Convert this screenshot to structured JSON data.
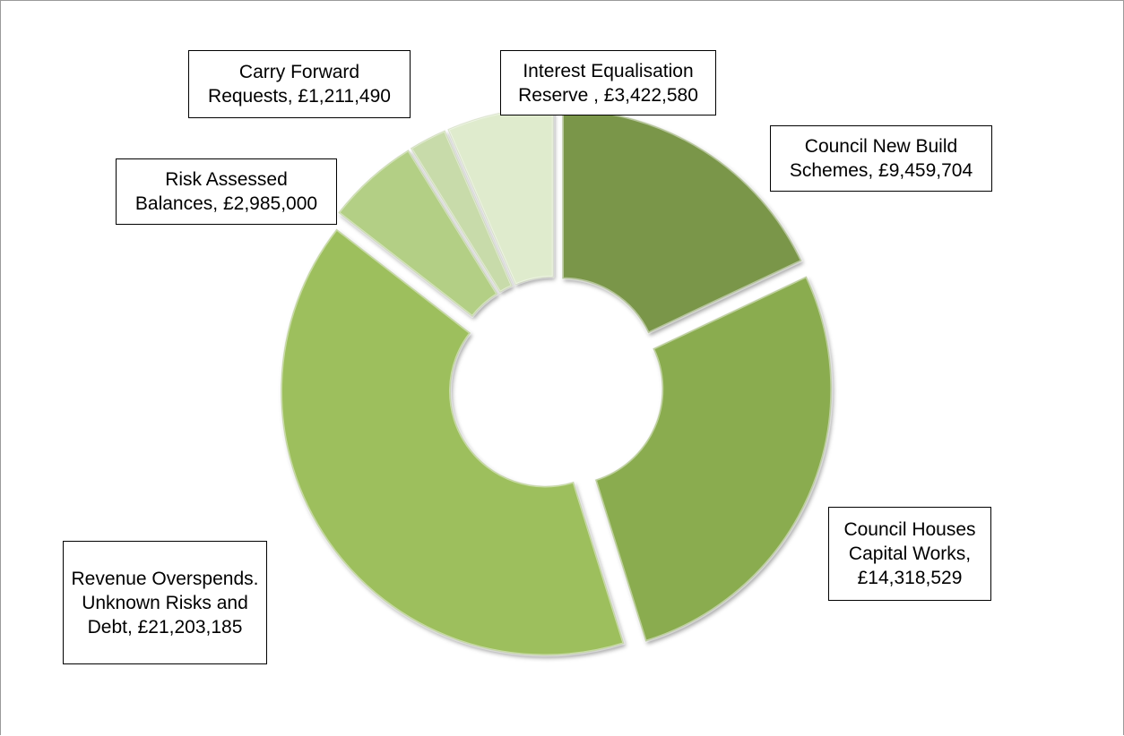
{
  "chart_data": {
    "type": "pie",
    "donut": true,
    "title": "",
    "legend": "none",
    "slices": [
      {
        "name": "Council New Build Schemes",
        "value": 9459704,
        "label": "Council New Build Schemes, £9,459,704",
        "color": "#7a9648"
      },
      {
        "name": "Council Houses Capital Works",
        "value": 14318529,
        "label": "Council Houses Capital Works, £14,318,529",
        "color": "#8aac50"
      },
      {
        "name": "Revenue Overspends. Unknown Risks and Debt",
        "value": 21203185,
        "label": "Revenue Overspends. Unknown Risks and Debt, £21,203,185",
        "color": "#9dbf5d"
      },
      {
        "name": "Risk Assessed Balances",
        "value": 2985000,
        "label": "Risk Assessed Balances, £2,985,000",
        "color": "#b3cf85"
      },
      {
        "name": "Carry Forward Requests",
        "value": 1211490,
        "label": "Carry Forward Requests, £1,211,490",
        "color": "#c8dbaa"
      },
      {
        "name": "Interest Equalisation Reserve",
        "value": 3422580,
        "label": "Interest Equalisation Reserve , £3,422,580",
        "color": "#dfebcd"
      }
    ]
  },
  "labels": {
    "new_build": "Council New Build Schemes, £9,459,704",
    "capital_works": "Council Houses Capital Works, £14,318,529",
    "revenue": "Revenue Overspends. Unknown Risks and Debt, £21,203,185",
    "risk_assessed": "Risk Assessed Balances, £2,985,000",
    "carry_forward": "Carry Forward Requests, £1,211,490",
    "interest": "Interest Equalisation Reserve , £3,422,580"
  }
}
